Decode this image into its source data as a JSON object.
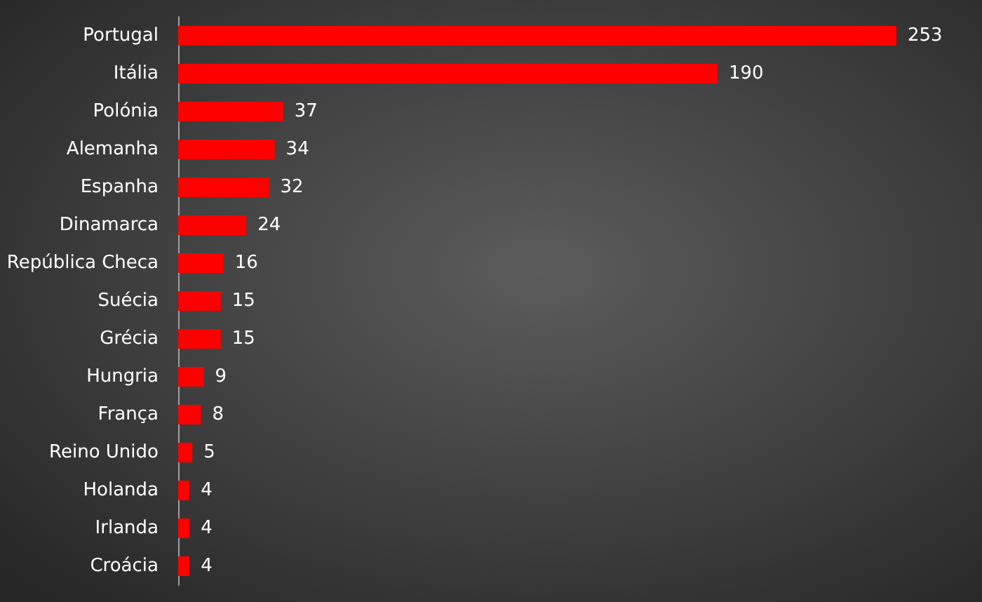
{
  "chart_data": {
    "type": "bar",
    "orientation": "horizontal",
    "color": "#ff0000",
    "data_labels": true,
    "categories": [
      "Portugal",
      "Itália",
      "Polónia",
      "Alemanha",
      "Espanha",
      "Dinamarca",
      "República Checa",
      "Suécia",
      "Grécia",
      "Hungria",
      "França",
      "Reino Unido",
      "Holanda",
      "Irlanda",
      "Croácia"
    ],
    "values": [
      253,
      190,
      37,
      34,
      32,
      24,
      16,
      15,
      15,
      9,
      8,
      5,
      4,
      4,
      4
    ]
  }
}
